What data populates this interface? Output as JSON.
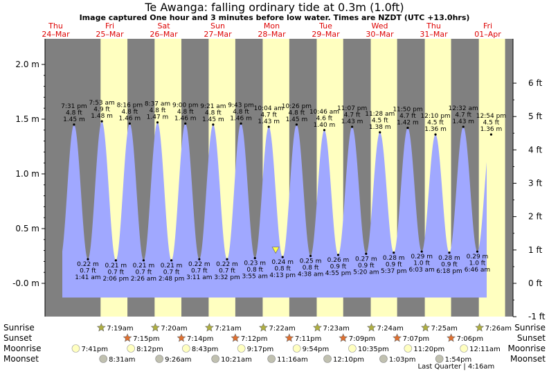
{
  "header": {
    "title": "Te Awanga: falling  ordinary tide at 0.3m (1.0ft)",
    "subtitle": "Image captured One hour and 3 minutes before low water. Times are NZDT (UTC +13.0hrs)"
  },
  "colors": {
    "night": "#808080",
    "day": "#ffffc0",
    "tide": "#a0a8ff",
    "day_label": "#dd0000"
  },
  "chart_data": {
    "type": "area",
    "title": "Te Awanga: falling  ordinary tide at 0.3m (1.0ft)",
    "xlabel": "",
    "ylabel": "",
    "ylim": [
      -0.1,
      2.0
    ],
    "y_left_ticks": [
      "-0.0 m",
      "0.5 m",
      "1.0 m",
      "1.5 m",
      "2.0 m"
    ],
    "y_right_ticks": [
      "-1 ft",
      "0 ft",
      "1 ft",
      "2 ft",
      "3 ft",
      "4 ft",
      "5 ft",
      "6 ft"
    ],
    "days": [
      {
        "dow": "Thu",
        "date": "24–Mar"
      },
      {
        "dow": "Fri",
        "date": "25–Mar"
      },
      {
        "dow": "Sat",
        "date": "26–Mar"
      },
      {
        "dow": "Sun",
        "date": "27–Mar"
      },
      {
        "dow": "Mon",
        "date": "28–Mar"
      },
      {
        "dow": "Tue",
        "date": "29–Mar"
      },
      {
        "dow": "Wed",
        "date": "30–Mar"
      },
      {
        "dow": "Thu",
        "date": "31–Mar"
      },
      {
        "dow": "Fri",
        "date": "01–Apr"
      }
    ],
    "high_tides": [
      {
        "time": "7:31 pm",
        "ft": "4.8 ft",
        "m": 1.45
      },
      {
        "time": "7:53 am",
        "ft": "4.9 ft",
        "m": 1.48
      },
      {
        "time": "8:16 pm",
        "ft": "4.8 ft",
        "m": 1.46
      },
      {
        "time": "8:37 am",
        "ft": "4.8 ft",
        "m": 1.47
      },
      {
        "time": "9:00 pm",
        "ft": "4.8 ft",
        "m": 1.46
      },
      {
        "time": "9:21 am",
        "ft": "4.8 ft",
        "m": 1.45
      },
      {
        "time": "9:43 pm",
        "ft": "4.8 ft",
        "m": 1.46
      },
      {
        "time": "10:04 am",
        "ft": "4.7 ft",
        "m": 1.43
      },
      {
        "time": "10:26 pm",
        "ft": "4.8 ft",
        "m": 1.45
      },
      {
        "time": "10:46 am",
        "ft": "4.6 ft",
        "m": 1.4
      },
      {
        "time": "11:07 pm",
        "ft": "4.7 ft",
        "m": 1.43
      },
      {
        "time": "11:28 am",
        "ft": "4.5 ft",
        "m": 1.38
      },
      {
        "time": "11:50 pm",
        "ft": "4.7 ft",
        "m": 1.42
      },
      {
        "time": "12:10 pm",
        "ft": "4.5 ft",
        "m": 1.36
      },
      {
        "time": "12:32 am",
        "ft": "4.7 ft",
        "m": 1.43
      },
      {
        "time": "12:54 pm",
        "ft": "4.5 ft",
        "m": 1.36
      }
    ],
    "low_tides": [
      {
        "time": "1:41 am",
        "ft": "0.7 ft",
        "m": 0.22
      },
      {
        "time": "2:06 pm",
        "ft": "0.7 ft",
        "m": 0.21
      },
      {
        "time": "2:26 am",
        "ft": "0.7 ft",
        "m": 0.21
      },
      {
        "time": "2:48 pm",
        "ft": "0.7 ft",
        "m": 0.21
      },
      {
        "time": "3:11 am",
        "ft": "0.7 ft",
        "m": 0.22
      },
      {
        "time": "3:32 pm",
        "ft": "0.7 ft",
        "m": 0.22
      },
      {
        "time": "3:55 am",
        "ft": "0.8 ft",
        "m": 0.23
      },
      {
        "time": "4:13 pm",
        "ft": "0.8 ft",
        "m": 0.24
      },
      {
        "time": "4:38 am",
        "ft": "0.8 ft",
        "m": 0.25
      },
      {
        "time": "4:55 pm",
        "ft": "0.9 ft",
        "m": 0.26
      },
      {
        "time": "5:20 am",
        "ft": "0.9 ft",
        "m": 0.27
      },
      {
        "time": "5:37 pm",
        "ft": "0.9 ft",
        "m": 0.28
      },
      {
        "time": "6:03 am",
        "ft": "1.0 ft",
        "m": 0.29
      },
      {
        "time": "6:18 pm",
        "ft": "0.9 ft",
        "m": 0.28
      },
      {
        "time": "6:46 am",
        "ft": "1.0 ft",
        "m": 0.29
      }
    ],
    "current_level_m": 0.3
  },
  "astro": {
    "labels": {
      "sunrise": "Sunrise",
      "sunset": "Sunset",
      "moonrise": "Moonrise",
      "moonset": "Moonset"
    },
    "sunrise": [
      "7:19am",
      "7:20am",
      "7:21am",
      "7:22am",
      "7:23am",
      "7:24am",
      "7:25am",
      "7:26am"
    ],
    "sunset": [
      "7:15pm",
      "7:14pm",
      "7:12pm",
      "7:11pm",
      "7:09pm",
      "7:07pm",
      "7:06pm"
    ],
    "moonrise": [
      "7:41pm",
      "8:12pm",
      "8:43pm",
      "9:17pm",
      "9:54pm",
      "10:35pm",
      "11:20pm",
      "12:11am"
    ],
    "moonset": [
      "8:31am",
      "9:26am",
      "10:21am",
      "11:16am",
      "12:10pm",
      "1:03pm",
      "1:54pm"
    ],
    "last_quarter": "Last Quarter | 4:16am"
  }
}
